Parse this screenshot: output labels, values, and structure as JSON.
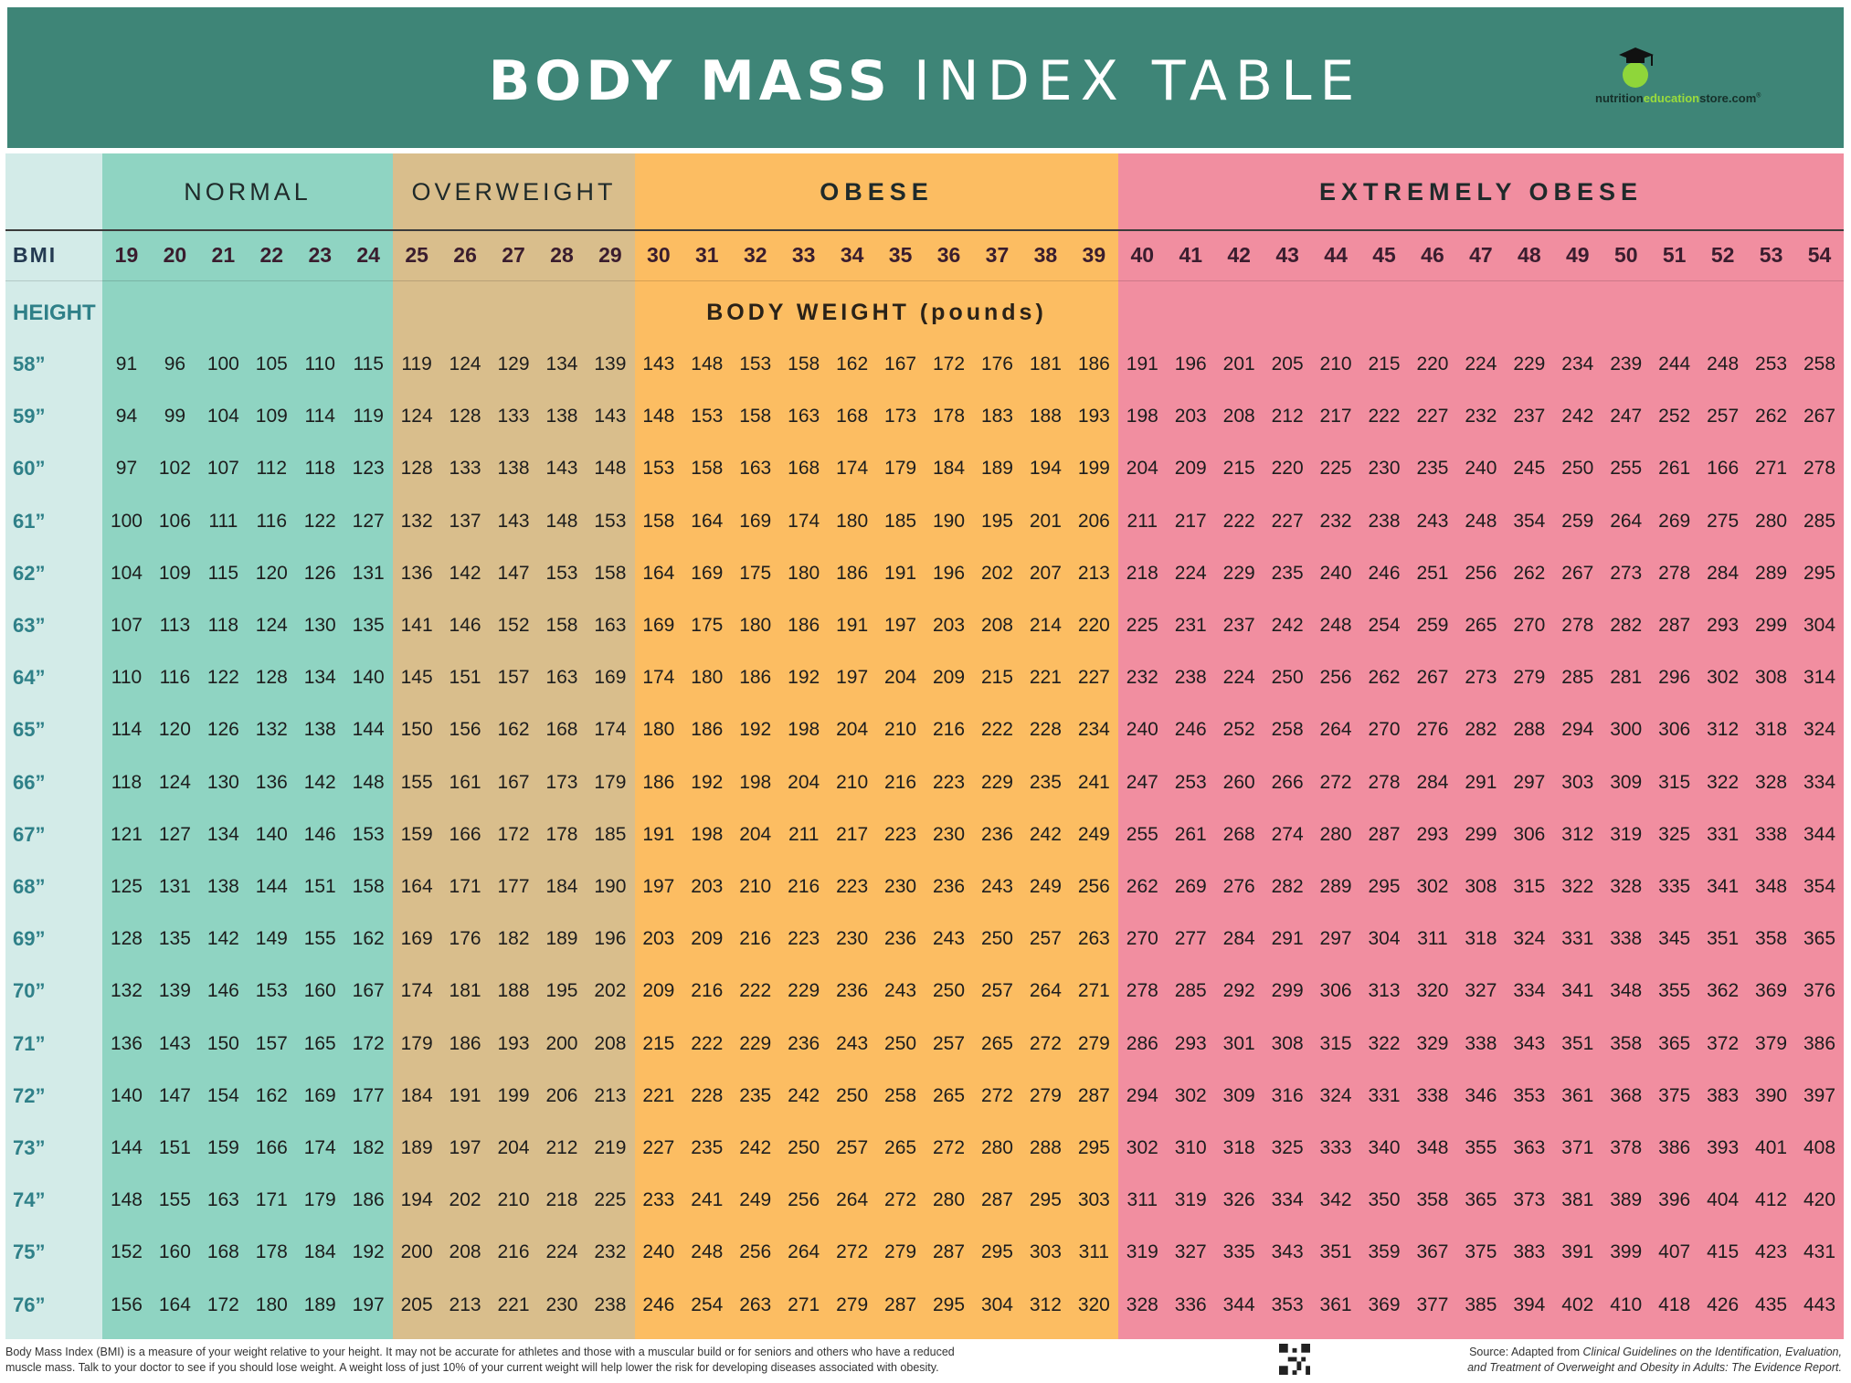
{
  "header": {
    "title_bold": "BODY MASS",
    "title_light": "INDEX TABLE",
    "logo_text_start": "nutrition",
    "logo_text_mid": "education",
    "logo_text_end": "store.com",
    "logo_mark": "®"
  },
  "colors": {
    "header": "#3e8577",
    "height_column": "#d3ebe8",
    "normal": "#8fd4c2",
    "overweight": "#d9be8c",
    "obese": "#fcbd62",
    "extremely_obese": "#f18ea0"
  },
  "categories": [
    {
      "label": "NORMAL",
      "bmi_from": 19,
      "bmi_to": 24
    },
    {
      "label": "OVERWEIGHT",
      "bmi_from": 25,
      "bmi_to": 29
    },
    {
      "label": "OBESE",
      "bmi_from": 30,
      "bmi_to": 39
    },
    {
      "label": "EXTREMELY OBESE",
      "bmi_from": 40,
      "bmi_to": 54
    }
  ],
  "table": {
    "bmi_label": "BMI",
    "height_label": "HEIGHT",
    "weight_label": "BODY WEIGHT (pounds)",
    "bmi": [
      "19",
      "20",
      "21",
      "22",
      "23",
      "24",
      "25",
      "26",
      "27",
      "28",
      "29",
      "30",
      "31",
      "32",
      "33",
      "34",
      "35",
      "36",
      "37",
      "38",
      "39",
      "40",
      "41",
      "42",
      "43",
      "44",
      "45",
      "46",
      "47",
      "48",
      "49",
      "50",
      "51",
      "52",
      "53",
      "54"
    ],
    "rows": [
      {
        "height": "58”",
        "weights": [
          "91",
          "96",
          "100",
          "105",
          "110",
          "115",
          "119",
          "124",
          "129",
          "134",
          "139",
          "143",
          "148",
          "153",
          "158",
          "162",
          "167",
          "172",
          "176",
          "181",
          "186",
          "191",
          "196",
          "201",
          "205",
          "210",
          "215",
          "220",
          "224",
          "229",
          "234",
          "239",
          "244",
          "248",
          "253",
          "258"
        ]
      },
      {
        "height": "59”",
        "weights": [
          "94",
          "99",
          "104",
          "109",
          "114",
          "119",
          "124",
          "128",
          "133",
          "138",
          "143",
          "148",
          "153",
          "158",
          "163",
          "168",
          "173",
          "178",
          "183",
          "188",
          "193",
          "198",
          "203",
          "208",
          "212",
          "217",
          "222",
          "227",
          "232",
          "237",
          "242",
          "247",
          "252",
          "257",
          "262",
          "267"
        ]
      },
      {
        "height": "60”",
        "weights": [
          "97",
          "102",
          "107",
          "112",
          "118",
          "123",
          "128",
          "133",
          "138",
          "143",
          "148",
          "153",
          "158",
          "163",
          "168",
          "174",
          "179",
          "184",
          "189",
          "194",
          "199",
          "204",
          "209",
          "215",
          "220",
          "225",
          "230",
          "235",
          "240",
          "245",
          "250",
          "255",
          "261",
          "166",
          "271",
          "278"
        ]
      },
      {
        "height": "61”",
        "weights": [
          "100",
          "106",
          "111",
          "116",
          "122",
          "127",
          "132",
          "137",
          "143",
          "148",
          "153",
          "158",
          "164",
          "169",
          "174",
          "180",
          "185",
          "190",
          "195",
          "201",
          "206",
          "211",
          "217",
          "222",
          "227",
          "232",
          "238",
          "243",
          "248",
          "354",
          "259",
          "264",
          "269",
          "275",
          "280",
          "285"
        ]
      },
      {
        "height": "62”",
        "weights": [
          "104",
          "109",
          "115",
          "120",
          "126",
          "131",
          "136",
          "142",
          "147",
          "153",
          "158",
          "164",
          "169",
          "175",
          "180",
          "186",
          "191",
          "196",
          "202",
          "207",
          "213",
          "218",
          "224",
          "229",
          "235",
          "240",
          "246",
          "251",
          "256",
          "262",
          "267",
          "273",
          "278",
          "284",
          "289",
          "295"
        ]
      },
      {
        "height": "63”",
        "weights": [
          "107",
          "113",
          "118",
          "124",
          "130",
          "135",
          "141",
          "146",
          "152",
          "158",
          "163",
          "169",
          "175",
          "180",
          "186",
          "191",
          "197",
          "203",
          "208",
          "214",
          "220",
          "225",
          "231",
          "237",
          "242",
          "248",
          "254",
          "259",
          "265",
          "270",
          "278",
          "282",
          "287",
          "293",
          "299",
          "304"
        ]
      },
      {
        "height": "64”",
        "weights": [
          "110",
          "116",
          "122",
          "128",
          "134",
          "140",
          "145",
          "151",
          "157",
          "163",
          "169",
          "174",
          "180",
          "186",
          "192",
          "197",
          "204",
          "209",
          "215",
          "221",
          "227",
          "232",
          "238",
          "224",
          "250",
          "256",
          "262",
          "267",
          "273",
          "279",
          "285",
          "281",
          "296",
          "302",
          "308",
          "314"
        ]
      },
      {
        "height": "65”",
        "weights": [
          "114",
          "120",
          "126",
          "132",
          "138",
          "144",
          "150",
          "156",
          "162",
          "168",
          "174",
          "180",
          "186",
          "192",
          "198",
          "204",
          "210",
          "216",
          "222",
          "228",
          "234",
          "240",
          "246",
          "252",
          "258",
          "264",
          "270",
          "276",
          "282",
          "288",
          "294",
          "300",
          "306",
          "312",
          "318",
          "324"
        ]
      },
      {
        "height": "66”",
        "weights": [
          "118",
          "124",
          "130",
          "136",
          "142",
          "148",
          "155",
          "161",
          "167",
          "173",
          "179",
          "186",
          "192",
          "198",
          "204",
          "210",
          "216",
          "223",
          "229",
          "235",
          "241",
          "247",
          "253",
          "260",
          "266",
          "272",
          "278",
          "284",
          "291",
          "297",
          "303",
          "309",
          "315",
          "322",
          "328",
          "334"
        ]
      },
      {
        "height": "67”",
        "weights": [
          "121",
          "127",
          "134",
          "140",
          "146",
          "153",
          "159",
          "166",
          "172",
          "178",
          "185",
          "191",
          "198",
          "204",
          "211",
          "217",
          "223",
          "230",
          "236",
          "242",
          "249",
          "255",
          "261",
          "268",
          "274",
          "280",
          "287",
          "293",
          "299",
          "306",
          "312",
          "319",
          "325",
          "331",
          "338",
          "344"
        ]
      },
      {
        "height": "68”",
        "weights": [
          "125",
          "131",
          "138",
          "144",
          "151",
          "158",
          "164",
          "171",
          "177",
          "184",
          "190",
          "197",
          "203",
          "210",
          "216",
          "223",
          "230",
          "236",
          "243",
          "249",
          "256",
          "262",
          "269",
          "276",
          "282",
          "289",
          "295",
          "302",
          "308",
          "315",
          "322",
          "328",
          "335",
          "341",
          "348",
          "354"
        ]
      },
      {
        "height": "69”",
        "weights": [
          "128",
          "135",
          "142",
          "149",
          "155",
          "162",
          "169",
          "176",
          "182",
          "189",
          "196",
          "203",
          "209",
          "216",
          "223",
          "230",
          "236",
          "243",
          "250",
          "257",
          "263",
          "270",
          "277",
          "284",
          "291",
          "297",
          "304",
          "311",
          "318",
          "324",
          "331",
          "338",
          "345",
          "351",
          "358",
          "365"
        ]
      },
      {
        "height": "70”",
        "weights": [
          "132",
          "139",
          "146",
          "153",
          "160",
          "167",
          "174",
          "181",
          "188",
          "195",
          "202",
          "209",
          "216",
          "222",
          "229",
          "236",
          "243",
          "250",
          "257",
          "264",
          "271",
          "278",
          "285",
          "292",
          "299",
          "306",
          "313",
          "320",
          "327",
          "334",
          "341",
          "348",
          "355",
          "362",
          "369",
          "376"
        ]
      },
      {
        "height": "71”",
        "weights": [
          "136",
          "143",
          "150",
          "157",
          "165",
          "172",
          "179",
          "186",
          "193",
          "200",
          "208",
          "215",
          "222",
          "229",
          "236",
          "243",
          "250",
          "257",
          "265",
          "272",
          "279",
          "286",
          "293",
          "301",
          "308",
          "315",
          "322",
          "329",
          "338",
          "343",
          "351",
          "358",
          "365",
          "372",
          "379",
          "386"
        ]
      },
      {
        "height": "72”",
        "weights": [
          "140",
          "147",
          "154",
          "162",
          "169",
          "177",
          "184",
          "191",
          "199",
          "206",
          "213",
          "221",
          "228",
          "235",
          "242",
          "250",
          "258",
          "265",
          "272",
          "279",
          "287",
          "294",
          "302",
          "309",
          "316",
          "324",
          "331",
          "338",
          "346",
          "353",
          "361",
          "368",
          "375",
          "383",
          "390",
          "397"
        ]
      },
      {
        "height": "73”",
        "weights": [
          "144",
          "151",
          "159",
          "166",
          "174",
          "182",
          "189",
          "197",
          "204",
          "212",
          "219",
          "227",
          "235",
          "242",
          "250",
          "257",
          "265",
          "272",
          "280",
          "288",
          "295",
          "302",
          "310",
          "318",
          "325",
          "333",
          "340",
          "348",
          "355",
          "363",
          "371",
          "378",
          "386",
          "393",
          "401",
          "408"
        ]
      },
      {
        "height": "74”",
        "weights": [
          "148",
          "155",
          "163",
          "171",
          "179",
          "186",
          "194",
          "202",
          "210",
          "218",
          "225",
          "233",
          "241",
          "249",
          "256",
          "264",
          "272",
          "280",
          "287",
          "295",
          "303",
          "311",
          "319",
          "326",
          "334",
          "342",
          "350",
          "358",
          "365",
          "373",
          "381",
          "389",
          "396",
          "404",
          "412",
          "420"
        ]
      },
      {
        "height": "75”",
        "weights": [
          "152",
          "160",
          "168",
          "178",
          "184",
          "192",
          "200",
          "208",
          "216",
          "224",
          "232",
          "240",
          "248",
          "256",
          "264",
          "272",
          "279",
          "287",
          "295",
          "303",
          "311",
          "319",
          "327",
          "335",
          "343",
          "351",
          "359",
          "367",
          "375",
          "383",
          "391",
          "399",
          "407",
          "415",
          "423",
          "431"
        ]
      },
      {
        "height": "76”",
        "weights": [
          "156",
          "164",
          "172",
          "180",
          "189",
          "197",
          "205",
          "213",
          "221",
          "230",
          "238",
          "246",
          "254",
          "263",
          "271",
          "279",
          "287",
          "295",
          "304",
          "312",
          "320",
          "328",
          "336",
          "344",
          "353",
          "361",
          "369",
          "377",
          "385",
          "394",
          "402",
          "410",
          "418",
          "426",
          "435",
          "443"
        ]
      }
    ]
  },
  "footer": {
    "description_line1": "Body Mass Index (BMI) is a measure of your weight relative to your height. It may not be accurate for athletes and those with a muscular build or for seniors and others who have a reduced",
    "description_line2": "muscle mass. Talk to your doctor to see if you should lose weight. A weight loss of just 10% of your current weight will help lower the risk for developing diseases associated with obesity.",
    "source_prefix": "Source:  Adapted from ",
    "source_title1": "Clinical Guidelines on the Identification, Evaluation,",
    "source_title2": "and Treatment of Overweight and Obesity in Adults: The Evidence Report."
  }
}
